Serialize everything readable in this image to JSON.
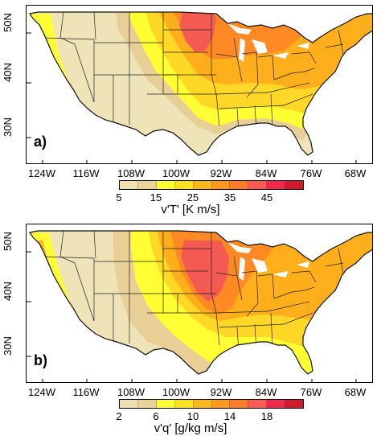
{
  "lat_labels": [
    "50N",
    "40N",
    "30N"
  ],
  "lon_labels": [
    "124W",
    "116W",
    "108W",
    "100W",
    "92W",
    "84W",
    "76W",
    "68W"
  ],
  "panels": [
    {
      "tag": "a)",
      "colorbar_title": "v'T' [K m/s]",
      "colorbar_ticks": [
        "5",
        "15",
        "25",
        "35",
        "45"
      ],
      "colorbar_colors": [
        "#efe1b0",
        "#ebd49a",
        "#ffff33",
        "#ffdf22",
        "#ffb81c",
        "#ff9a1e",
        "#ff7a2a",
        "#ff5a55",
        "#f0284a",
        "#d11a2a"
      ],
      "colors": {
        "base": "#efe3b8",
        "c1": "#e7cf96",
        "c2": "#ffff33",
        "c3": "#ffd726",
        "c4": "#ffae1c",
        "c5": "#ff8a24",
        "c6": "#f25a52",
        "c7": "#e8284b"
      }
    },
    {
      "tag": "b)",
      "colorbar_title": "v'q' [g/kg m/s]",
      "colorbar_ticks": [
        "2",
        "6",
        "10",
        "14",
        "18"
      ],
      "colorbar_colors": [
        "#efe1b0",
        "#ebd49a",
        "#ffff33",
        "#ffdf22",
        "#ffb81c",
        "#ff9a1e",
        "#ff7a2a",
        "#ff5a55",
        "#f0284a",
        "#d11a2a"
      ],
      "colors": {
        "base": "#efe3b8",
        "c1": "#e7cf96",
        "c2": "#ffff33",
        "c3": "#ffd726",
        "c4": "#ffae1c",
        "c5": "#ff8a24",
        "c6": "#f25a52",
        "c7": "#e8284b"
      }
    }
  ]
}
